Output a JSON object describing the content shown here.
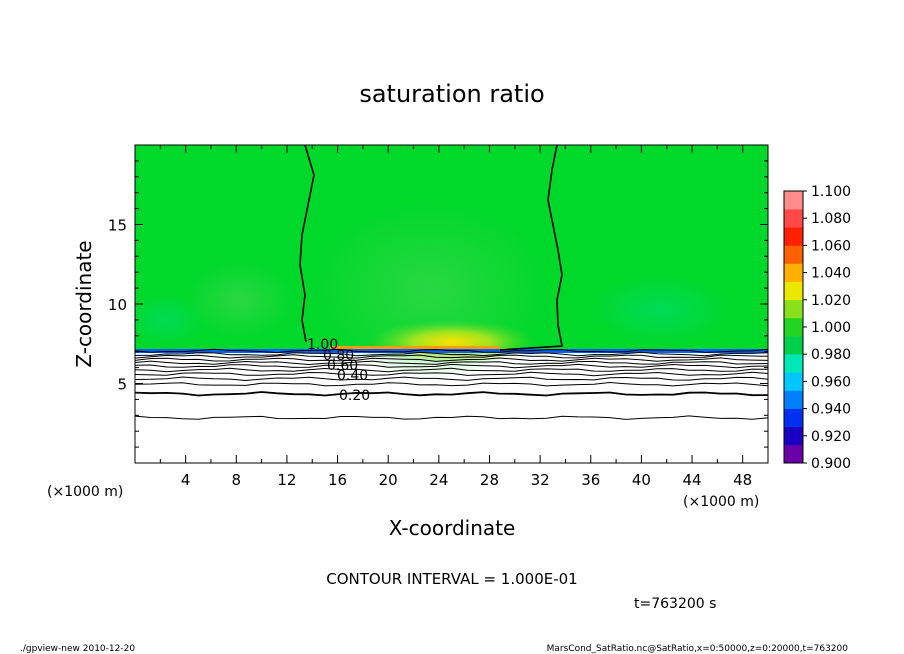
{
  "chart_data": {
    "type": "heatmap",
    "title": "saturation ratio",
    "xlabel": "X-coordinate",
    "ylabel": "Z-coordinate",
    "x_unit": "(×1000 m)",
    "z_unit": "(×1000 m)",
    "xlim": [
      0,
      50
    ],
    "ylim": [
      0,
      20
    ],
    "x_ticks": [
      "4",
      "8",
      "12",
      "16",
      "20",
      "24",
      "28",
      "32",
      "36",
      "40",
      "44",
      "48"
    ],
    "y_ticks": [
      "5",
      "10",
      "15"
    ],
    "colorbar": {
      "labels": [
        "0.900",
        "0.920",
        "0.940",
        "0.960",
        "0.980",
        "1.000",
        "1.020",
        "1.040",
        "1.060",
        "1.080",
        "1.100"
      ],
      "colors": [
        "#6a00a8",
        "#1a00c0",
        "#0030f0",
        "#0080ff",
        "#00c8ff",
        "#00e8b8",
        "#00d04a",
        "#22d522",
        "#8ae01a",
        "#e8e800",
        "#ffb000",
        "#ff6000",
        "#ff2000",
        "#ff4848",
        "#ff8c8c"
      ]
    },
    "contour_interval": "CONTOUR INTERVAL = 1.000E-01",
    "contours": [
      {
        "label": "1.00",
        "z": 7.0
      },
      {
        "label": "0.80",
        "z": 6.7
      },
      {
        "label": "0.60",
        "z": 6.2
      },
      {
        "label": "0.40",
        "z": 5.4
      },
      {
        "label": "0.20",
        "z": 4.3
      }
    ],
    "dry_layer_lines_z": [
      7.05,
      6.85,
      6.7,
      6.5,
      6.3,
      6.1,
      5.85,
      5.6,
      5.3,
      4.95,
      4.35,
      2.85
    ],
    "cloud_layer_top_z": 7.2,
    "background_value": "1.000",
    "unsaturated_boundaries_x": {
      "left": [
        13.5,
        14.2,
        13.4,
        13.1,
        13.3,
        13.0
      ],
      "right": [
        32.6,
        32.1,
        33.3,
        32.9,
        33.6,
        34.0
      ]
    },
    "supersaturated_core": {
      "x": 25.5,
      "z": 7.5,
      "value": "1.040"
    }
  },
  "footer": {
    "time": "t=763200 s",
    "left_note": "./gpview-new  2010-12-20",
    "right_note": "MarsCond_SatRatio.nc@SatRatio,x=0:50000,z=0:20000,t=763200"
  }
}
